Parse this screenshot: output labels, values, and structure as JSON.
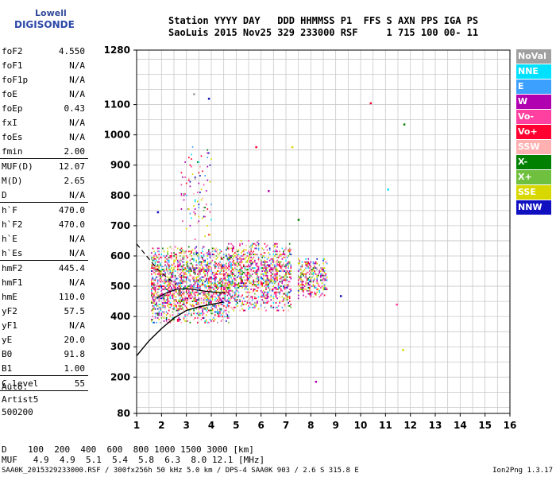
{
  "logo": {
    "line1": "Lowell",
    "line2": "DIGISONDE"
  },
  "header": {
    "row1": "Station YYYY DAY   DDD HHMMSS P1  FFS S AXN PPS IGA PS",
    "row2": "SaoLuis 2015 Nov25 329 233000 RSF     1 715 100 00- 11"
  },
  "params": [
    {
      "k": "foF2",
      "v": "4.550"
    },
    {
      "k": "foF1",
      "v": "N/A"
    },
    {
      "k": "foF1p",
      "v": "N/A"
    },
    {
      "k": "foE",
      "v": "N/A"
    },
    {
      "k": "foEp",
      "v": "0.43"
    },
    {
      "k": "fxI",
      "v": "N/A"
    },
    {
      "k": "foEs",
      "v": "N/A"
    },
    {
      "k": "fmin",
      "v": "2.00"
    },
    {
      "k": "MUF(D)",
      "v": "12.07"
    },
    {
      "k": "M(D)",
      "v": "2.65"
    },
    {
      "k": "D",
      "v": "N/A"
    },
    {
      "k": "h`F",
      "v": "470.0"
    },
    {
      "k": "h`F2",
      "v": "470.0"
    },
    {
      "k": "h`E",
      "v": "N/A"
    },
    {
      "k": "h`Es",
      "v": "N/A"
    },
    {
      "k": "hmF2",
      "v": "445.4"
    },
    {
      "k": "hmF1",
      "v": "N/A"
    },
    {
      "k": "hmE",
      "v": "110.0"
    },
    {
      "k": "yF2",
      "v": "57.5"
    },
    {
      "k": "yF1",
      "v": "N/A"
    },
    {
      "k": "yE",
      "v": "20.0"
    },
    {
      "k": "B0",
      "v": "91.8"
    },
    {
      "k": "B1",
      "v": "1.00"
    },
    {
      "k": "C-level",
      "v": "55"
    }
  ],
  "auto": {
    "l1": "Auto:",
    "l2": "Artist5",
    "l3": "500200"
  },
  "legend": [
    {
      "label": "NoVal",
      "color": "#a0a0a0"
    },
    {
      "label": "NNE",
      "color": "#00e0ff"
    },
    {
      "label": "E",
      "color": "#3ca0ff"
    },
    {
      "label": "W",
      "color": "#b000b0"
    },
    {
      "label": "Vo-",
      "color": "#ff40a0"
    },
    {
      "label": "Vo+",
      "color": "#ff0030"
    },
    {
      "label": "SSW",
      "color": "#ffb0b0"
    },
    {
      "label": "X-",
      "color": "#008000"
    },
    {
      "label": "X+",
      "color": "#70c040"
    },
    {
      "label": "SSE",
      "color": "#d8d800"
    },
    {
      "label": "NNW",
      "color": "#1010c0"
    }
  ],
  "muf_table": {
    "d_row": "D    100  200  400  600  800 1000 1500 3000 [km]",
    "m_row": "MUF   4.9  4.9  5.1  5.4  5.8  6.3  8.0 12.1 [MHz]"
  },
  "footer": "SAA0K_2015329233000.RSF / 300fx256h 50 kHz 5.0 km / DPS-4 SAA0K 903 / 2.6 S 315.8 E",
  "version": "Ion2Png 1.3.17",
  "chart_data": {
    "type": "scatter",
    "xlim": [
      1,
      16
    ],
    "ylim": [
      80,
      1280
    ],
    "xticks": [
      1,
      2,
      3,
      4,
      5,
      6,
      7,
      8,
      9,
      10,
      11,
      12,
      13,
      14,
      15,
      16
    ],
    "yticks": [
      80,
      200,
      300,
      400,
      500,
      600,
      700,
      800,
      900,
      1000,
      1100,
      1280
    ],
    "grid": true,
    "units": {
      "x": "MHz",
      "y": "km"
    },
    "clusters": [
      {
        "fmin": 1.6,
        "fmax": 4.7,
        "hmin": 380,
        "hmax": 630,
        "density": 0.55
      },
      {
        "fmin": 2.8,
        "fmax": 4.0,
        "hmin": 650,
        "hmax": 960,
        "density": 0.08
      },
      {
        "fmin": 4.7,
        "fmax": 5.9,
        "hmin": 420,
        "hmax": 650,
        "density": 0.5
      },
      {
        "fmin": 6.0,
        "fmax": 7.2,
        "hmin": 420,
        "hmax": 640,
        "density": 0.5
      },
      {
        "fmin": 7.5,
        "fmax": 8.7,
        "hmin": 460,
        "hmax": 590,
        "density": 0.5
      }
    ],
    "scattered_points": [
      {
        "x": 10.4,
        "y": 1105,
        "c": "#ff0030"
      },
      {
        "x": 11.75,
        "y": 1035,
        "c": "#008000"
      },
      {
        "x": 11.1,
        "y": 820,
        "c": "#00e0ff"
      },
      {
        "x": 11.7,
        "y": 290,
        "c": "#d8d800"
      },
      {
        "x": 11.45,
        "y": 440,
        "c": "#ff40a0"
      },
      {
        "x": 8.2,
        "y": 185,
        "c": "#b000b0"
      },
      {
        "x": 9.2,
        "y": 468,
        "c": "#1010c0"
      },
      {
        "x": 6.3,
        "y": 815,
        "c": "#b000b0"
      },
      {
        "x": 7.25,
        "y": 960,
        "c": "#d8d800"
      },
      {
        "x": 3.9,
        "y": 1120,
        "c": "#1010c0"
      },
      {
        "x": 3.3,
        "y": 1135,
        "c": "#a0a0a0"
      },
      {
        "x": 5.8,
        "y": 960,
        "c": "#ff0030"
      },
      {
        "x": 1.85,
        "y": 745,
        "c": "#1010c0"
      },
      {
        "x": 7.5,
        "y": 720,
        "c": "#008000"
      }
    ],
    "trace_solid": [
      [
        1.0,
        270
      ],
      [
        1.5,
        320
      ],
      [
        2.0,
        360
      ],
      [
        2.5,
        395
      ],
      [
        3.0,
        420
      ],
      [
        3.5,
        432
      ],
      [
        4.0,
        440
      ],
      [
        4.5,
        448
      ]
    ],
    "trace_dashed": [
      [
        1.0,
        640
      ],
      [
        1.4,
        600
      ],
      [
        1.8,
        560
      ],
      [
        2.2,
        530
      ],
      [
        2.6,
        505
      ]
    ],
    "trace_upper": [
      [
        1.8,
        460
      ],
      [
        2.2,
        478
      ],
      [
        2.6,
        490
      ],
      [
        3.0,
        492
      ],
      [
        3.4,
        488
      ],
      [
        3.8,
        483
      ],
      [
        4.2,
        480
      ],
      [
        4.55,
        478
      ]
    ]
  }
}
